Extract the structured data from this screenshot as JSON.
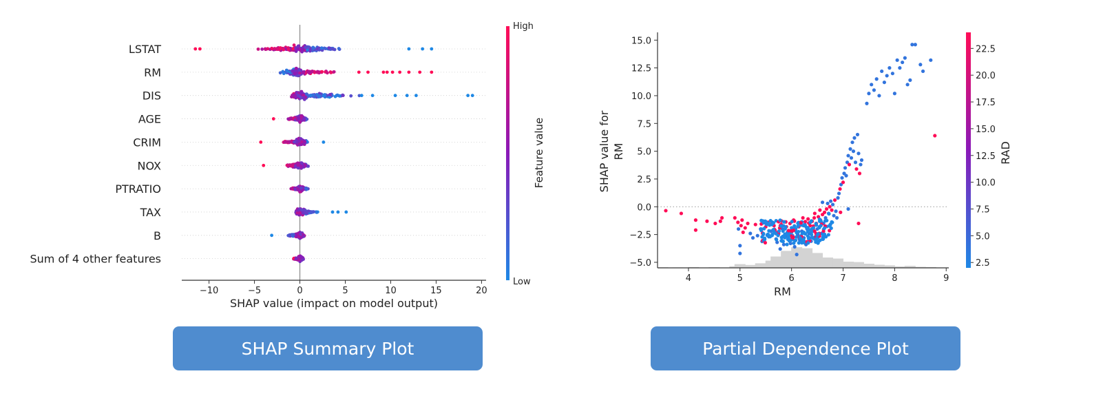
{
  "buttons": {
    "summary_label": "SHAP Summary Plot",
    "dependence_label": "Partial Dependence Plot"
  },
  "colors": {
    "high": "#ff0d57",
    "mid": "#8a19b8",
    "low": "#1e88e5",
    "button": "#4f8ccf",
    "histogram": "#d3d3d3"
  },
  "chart_data": [
    {
      "type": "scatter",
      "subtype": "beeswarm",
      "title": "",
      "xlabel": "SHAP value (impact on model output)",
      "ylabel": "",
      "xlim": [
        -13,
        20.5
      ],
      "xticks": [
        -10,
        -5,
        0,
        5,
        10,
        15,
        20
      ],
      "xtick_labels": [
        "−10",
        "−5",
        "0",
        "5",
        "10",
        "15",
        "20"
      ],
      "grid": false,
      "colorbar": {
        "label": "Feature value",
        "high_label": "High",
        "low_label": "Low"
      },
      "features": [
        {
          "name": "LSTAT",
          "min": -11.5,
          "max": 14.5,
          "neg_high": true,
          "density_neg": 0.45,
          "outliers": [
            [
              -11.5,
              1
            ],
            [
              -11,
              1
            ],
            [
              12,
              0
            ],
            [
              13.5,
              0
            ],
            [
              14.5,
              0
            ]
          ]
        },
        {
          "name": "RM",
          "min": -4.5,
          "max": 14.5,
          "neg_high": false,
          "density_neg": 0.75,
          "outliers": [
            [
              9.2,
              1
            ],
            [
              9.6,
              1
            ],
            [
              10.2,
              1
            ],
            [
              11,
              1
            ],
            [
              12,
              1
            ],
            [
              13.2,
              1
            ],
            [
              14.5,
              1
            ],
            [
              7.5,
              1
            ],
            [
              6.5,
              1
            ]
          ]
        },
        {
          "name": "DIS",
          "min": -2.2,
          "max": 19,
          "neg_high": true,
          "density_neg": 0.45,
          "outliers": [
            [
              6.8,
              0
            ],
            [
              8,
              0
            ],
            [
              10.5,
              0
            ],
            [
              11.8,
              0
            ],
            [
              12.8,
              0
            ],
            [
              18.5,
              0
            ],
            [
              19,
              0
            ]
          ]
        },
        {
          "name": "AGE",
          "min": -3,
          "max": 2.7,
          "neg_high": true,
          "density_neg": 0.5,
          "outliers": [
            [
              -2.9,
              1
            ]
          ]
        },
        {
          "name": "CRIM",
          "min": -4.5,
          "max": 2.7,
          "neg_high": true,
          "density_neg": 0.55,
          "outliers": [
            [
              -4.3,
              1
            ],
            [
              2.6,
              0
            ]
          ]
        },
        {
          "name": "NOX",
          "min": -4.0,
          "max": 2.6,
          "neg_high": true,
          "density_neg": 0.5,
          "outliers": [
            [
              -4.0,
              1
            ]
          ]
        },
        {
          "name": "PTRATIO",
          "min": -2.3,
          "max": 2.5,
          "neg_high": true,
          "density_neg": 0.5,
          "outliers": []
        },
        {
          "name": "TAX",
          "min": -1.5,
          "max": 5.2,
          "neg_high": true,
          "density_neg": 0.35,
          "outliers": [
            [
              3.6,
              0
            ],
            [
              4.2,
              0
            ],
            [
              5.1,
              0
            ]
          ]
        },
        {
          "name": "B",
          "min": -3.2,
          "max": 1.5,
          "neg_high": false,
          "density_neg": 0.5,
          "outliers": [
            [
              -3.1,
              0
            ]
          ]
        },
        {
          "name": "Sum of 4 other features",
          "min": -1.8,
          "max": 1.3,
          "neg_high": true,
          "density_neg": 0.5,
          "outliers": []
        }
      ]
    },
    {
      "type": "scatter",
      "subtype": "dependence",
      "title": "",
      "xlabel": "RM",
      "ylabel_lines": [
        "SHAP value for",
        "RM"
      ],
      "xlim": [
        3.4,
        9.05
      ],
      "ylim": [
        -5.5,
        15.7
      ],
      "xticks": [
        4,
        5,
        6,
        7,
        8,
        9
      ],
      "yticks": [
        -5.0,
        -2.5,
        0.0,
        2.5,
        5.0,
        7.5,
        10.0,
        12.5,
        15.0
      ],
      "ytick_labels": [
        "−5.0",
        "−2.5",
        "0.0",
        "2.5",
        "5.0",
        "7.5",
        "10.0",
        "12.5",
        "15.0"
      ],
      "zero_line": true,
      "colorbar": {
        "label": "RAD",
        "range": [
          2,
          24
        ],
        "ticks": [
          2.5,
          5.0,
          7.5,
          10.0,
          12.5,
          15.0,
          17.5,
          20.0,
          22.5
        ],
        "tick_labels": [
          "2.5",
          "5.0",
          "7.5",
          "10.0",
          "12.5",
          "15.0",
          "17.5",
          "20.0",
          "22.5"
        ]
      },
      "histogram": [
        [
          3.5,
          0.03
        ],
        [
          3.8,
          0.02
        ],
        [
          4.1,
          0.04
        ],
        [
          4.5,
          0.03
        ],
        [
          4.9,
          0.08
        ],
        [
          5.0,
          0.18
        ],
        [
          5.2,
          0.14
        ],
        [
          5.4,
          0.22
        ],
        [
          5.6,
          0.35
        ],
        [
          5.7,
          0.55
        ],
        [
          5.9,
          0.82
        ],
        [
          6.1,
          1.0
        ],
        [
          6.3,
          0.95
        ],
        [
          6.5,
          0.72
        ],
        [
          6.7,
          0.5
        ],
        [
          6.9,
          0.45
        ],
        [
          7.1,
          0.3
        ],
        [
          7.3,
          0.28
        ],
        [
          7.5,
          0.2
        ],
        [
          7.7,
          0.15
        ],
        [
          7.9,
          0.12
        ],
        [
          8.1,
          0.07
        ],
        [
          8.3,
          0.1
        ],
        [
          8.5,
          0.05
        ],
        [
          8.7,
          0.04
        ]
      ],
      "points": [
        [
          3.56,
          -0.35,
          24
        ],
        [
          3.86,
          -0.6,
          24
        ],
        [
          4.14,
          -1.2,
          24
        ],
        [
          4.14,
          -2.1,
          24
        ],
        [
          4.36,
          -1.3,
          24
        ],
        [
          4.52,
          -1.5,
          24
        ],
        [
          4.62,
          -1.3,
          24
        ],
        [
          4.65,
          -1.0,
          24
        ],
        [
          4.9,
          -1.0,
          24
        ],
        [
          4.96,
          -1.4,
          24
        ],
        [
          4.97,
          -2.0,
          4
        ],
        [
          5.0,
          -4.2,
          4
        ],
        [
          5.0,
          -3.5,
          4
        ],
        [
          5.02,
          -1.7,
          24
        ],
        [
          5.04,
          -1.2,
          24
        ],
        [
          5.06,
          -2.3,
          24
        ],
        [
          5.1,
          -1.9,
          24
        ],
        [
          5.2,
          -2.4,
          4
        ],
        [
          5.3,
          -1.6,
          24
        ],
        [
          5.34,
          -2.6,
          4
        ],
        [
          5.4,
          -2.0,
          4
        ],
        [
          5.45,
          -1.3,
          24
        ],
        [
          5.5,
          -1.8,
          24
        ],
        [
          5.56,
          -2.7,
          4
        ],
        [
          5.6,
          -2.2,
          4
        ],
        [
          5.62,
          -1.5,
          24
        ],
        [
          5.66,
          -1.7,
          24
        ],
        [
          5.7,
          -2.9,
          4
        ],
        [
          5.72,
          -3.2,
          4
        ],
        [
          5.75,
          -2.4,
          4
        ],
        [
          5.8,
          -1.6,
          24
        ],
        [
          5.82,
          -2.0,
          4
        ],
        [
          5.85,
          -3.4,
          4
        ],
        [
          5.88,
          -2.7,
          4
        ],
        [
          5.9,
          -1.8,
          24
        ],
        [
          5.92,
          -2.3,
          4
        ],
        [
          5.95,
          -3.0,
          4
        ],
        [
          5.97,
          -1.5,
          24
        ],
        [
          6.0,
          -2.1,
          4
        ],
        [
          6.02,
          -2.6,
          4
        ],
        [
          6.04,
          -1.2,
          24
        ],
        [
          6.06,
          -3.6,
          4
        ],
        [
          6.08,
          -2.0,
          4
        ],
        [
          6.1,
          -4.3,
          4
        ],
        [
          6.12,
          -2.5,
          4
        ],
        [
          6.14,
          -1.8,
          24
        ],
        [
          6.16,
          -3.0,
          4
        ],
        [
          6.18,
          -1.4,
          24
        ],
        [
          6.2,
          -2.2,
          4
        ],
        [
          6.22,
          -1.0,
          24
        ],
        [
          6.24,
          -2.8,
          4
        ],
        [
          6.26,
          -1.6,
          24
        ],
        [
          6.28,
          -3.4,
          4
        ],
        [
          6.3,
          -2.0,
          4
        ],
        [
          6.32,
          -1.1,
          24
        ],
        [
          6.34,
          -2.4,
          4
        ],
        [
          6.36,
          -1.7,
          24
        ],
        [
          6.38,
          -3.1,
          4
        ],
        [
          6.4,
          -1.3,
          24
        ],
        [
          6.42,
          -2.2,
          4
        ],
        [
          6.44,
          -1.0,
          24
        ],
        [
          6.46,
          -2.7,
          4
        ],
        [
          6.48,
          -1.5,
          24
        ],
        [
          6.5,
          -2.0,
          4
        ],
        [
          6.52,
          -0.9,
          24
        ],
        [
          6.54,
          -1.8,
          4
        ],
        [
          6.56,
          -1.2,
          24
        ],
        [
          6.58,
          -2.4,
          4
        ],
        [
          6.6,
          -0.7,
          24
        ],
        [
          6.62,
          -1.5,
          4
        ],
        [
          6.64,
          -0.5,
          24
        ],
        [
          6.66,
          -1.0,
          4
        ],
        [
          6.68,
          -0.2,
          24
        ],
        [
          6.7,
          0.3,
          4
        ],
        [
          6.72,
          -0.6,
          4
        ],
        [
          6.74,
          0.0,
          24
        ],
        [
          6.76,
          0.5,
          4
        ],
        [
          6.78,
          -0.3,
          24
        ],
        [
          6.8,
          0.2,
          4
        ],
        [
          6.82,
          -0.8,
          4
        ],
        [
          6.84,
          0.6,
          24
        ],
        [
          6.86,
          -0.4,
          4
        ],
        [
          6.88,
          -1.0,
          4
        ],
        [
          6.9,
          0.8,
          4
        ],
        [
          6.92,
          1.2,
          4
        ],
        [
          6.94,
          1.6,
          24
        ],
        [
          6.96,
          2.0,
          4
        ],
        [
          6.98,
          2.6,
          4
        ],
        [
          7.0,
          2.2,
          24
        ],
        [
          7.02,
          3.0,
          4
        ],
        [
          7.04,
          3.5,
          4
        ],
        [
          7.06,
          2.8,
          4
        ],
        [
          7.08,
          4.0,
          4
        ],
        [
          7.1,
          4.6,
          4
        ],
        [
          7.12,
          3.8,
          24
        ],
        [
          7.14,
          5.2,
          4
        ],
        [
          7.16,
          4.4,
          4
        ],
        [
          7.18,
          5.8,
          4
        ],
        [
          7.2,
          5.0,
          4
        ],
        [
          7.22,
          6.2,
          4
        ],
        [
          7.24,
          4.0,
          4
        ],
        [
          7.26,
          3.4,
          24
        ],
        [
          7.28,
          6.5,
          4
        ],
        [
          7.3,
          4.8,
          4
        ],
        [
          7.32,
          3.0,
          24
        ],
        [
          7.34,
          3.8,
          4
        ],
        [
          7.36,
          4.2,
          4
        ],
        [
          7.3,
          -1.5,
          24
        ],
        [
          7.46,
          9.3,
          4
        ],
        [
          7.5,
          10.2,
          4
        ],
        [
          7.55,
          11.0,
          4
        ],
        [
          7.6,
          10.5,
          4
        ],
        [
          7.65,
          11.5,
          4
        ],
        [
          7.7,
          10.0,
          4
        ],
        [
          7.75,
          12.2,
          4
        ],
        [
          7.8,
          11.2,
          4
        ],
        [
          7.85,
          11.8,
          4
        ],
        [
          7.9,
          12.5,
          4
        ],
        [
          7.96,
          12.0,
          4
        ],
        [
          8.0,
          10.2,
          4
        ],
        [
          8.05,
          13.2,
          4
        ],
        [
          8.1,
          12.5,
          4
        ],
        [
          8.15,
          13.0,
          4
        ],
        [
          8.2,
          13.4,
          4
        ],
        [
          8.25,
          11.0,
          4
        ],
        [
          8.3,
          11.4,
          4
        ],
        [
          8.34,
          14.6,
          4
        ],
        [
          8.4,
          14.6,
          4
        ],
        [
          8.5,
          12.8,
          4
        ],
        [
          8.55,
          12.2,
          4
        ],
        [
          8.7,
          13.2,
          4
        ],
        [
          8.78,
          6.4,
          24
        ],
        [
          7.1,
          -0.2,
          4
        ],
        [
          6.95,
          -0.5,
          24
        ],
        [
          5.15,
          -1.5,
          24
        ],
        [
          5.25,
          -2.8,
          4
        ],
        [
          5.45,
          -2.5,
          4
        ],
        [
          5.55,
          -1.4,
          24
        ],
        [
          5.78,
          -3.8,
          4
        ],
        [
          5.98,
          -3.3,
          4
        ],
        [
          6.15,
          -2.9,
          4
        ],
        [
          6.35,
          -2.8,
          4
        ],
        [
          6.45,
          -0.6,
          24
        ],
        [
          6.55,
          -0.3,
          24
        ],
        [
          6.6,
          0.4,
          4
        ]
      ]
    }
  ]
}
